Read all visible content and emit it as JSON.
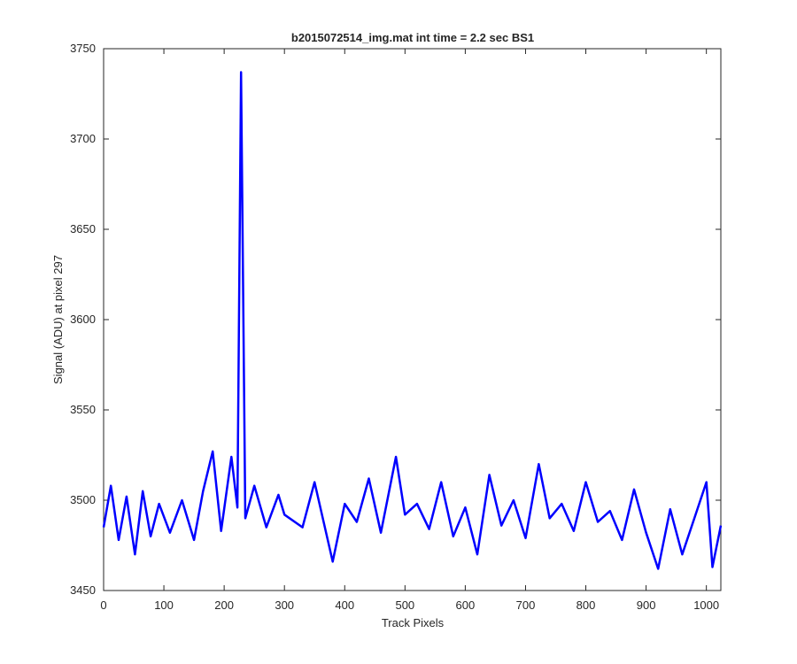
{
  "chart_data": {
    "type": "line",
    "title": "b2015072514_img.mat int time = 2.2 sec   BS1",
    "xlabel": "Track Pixels",
    "ylabel": "Signal (ADU) at pixel 297",
    "xlim": [
      0,
      1024
    ],
    "ylim": [
      3450,
      3750
    ],
    "x_ticks": [
      0,
      100,
      200,
      300,
      400,
      500,
      600,
      700,
      800,
      900,
      1000
    ],
    "y_ticks": [
      3450,
      3500,
      3550,
      3600,
      3650,
      3700,
      3750
    ],
    "grid": false,
    "line_color": "#0000ff",
    "series": [
      {
        "x": [
          0,
          12,
          25,
          38,
          52,
          65,
          78,
          92,
          110,
          130,
          150,
          165,
          181,
          195,
          212,
          222,
          228,
          235,
          250,
          270,
          290,
          300,
          330,
          350,
          380,
          400,
          420,
          440,
          460,
          485,
          500,
          520,
          540,
          560,
          580,
          600,
          620,
          640,
          660,
          680,
          700,
          722,
          740,
          760,
          780,
          800,
          820,
          840,
          860,
          880,
          900,
          920,
          940,
          960,
          980,
          1000,
          1010,
          1024
        ],
        "y": [
          3485,
          3508,
          3478,
          3502,
          3470,
          3505,
          3480,
          3498,
          3482,
          3500,
          3478,
          3505,
          3527,
          3483,
          3524,
          3496,
          3737,
          3490,
          3508,
          3485,
          3503,
          3492,
          3485,
          3510,
          3466,
          3498,
          3488,
          3512,
          3482,
          3524,
          3492,
          3498,
          3484,
          3510,
          3480,
          3496,
          3470,
          3514,
          3486,
          3500,
          3479,
          3520,
          3490,
          3498,
          3483,
          3510,
          3488,
          3494,
          3478,
          3506,
          3482,
          3462,
          3495,
          3470,
          3490,
          3510,
          3463,
          3486
        ]
      }
    ]
  }
}
